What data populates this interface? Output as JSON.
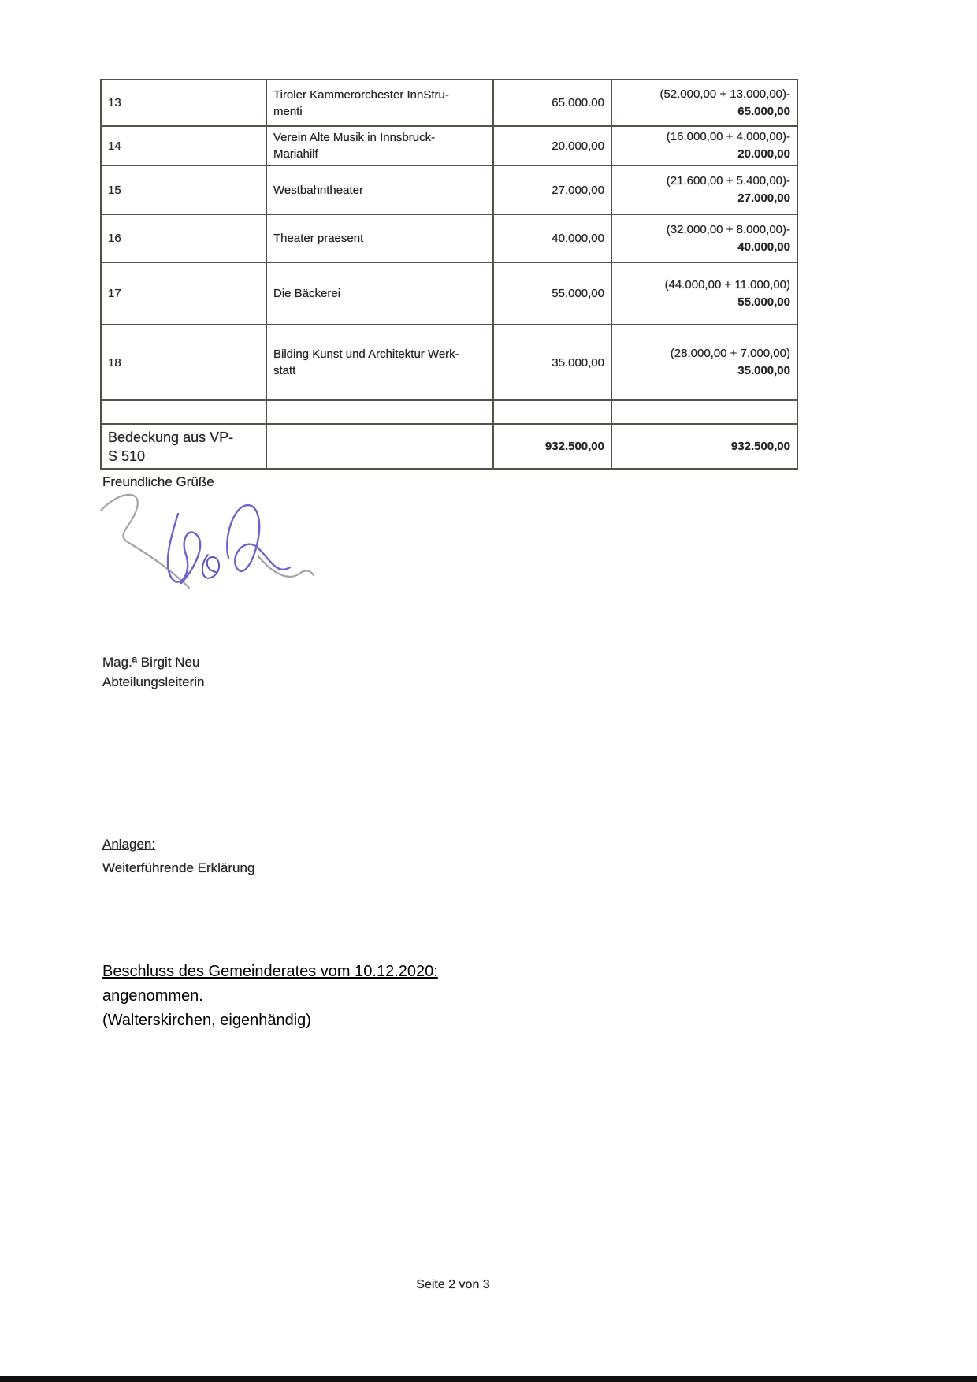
{
  "table": {
    "rows": [
      {
        "num": "13",
        "name_lines": [
          "Tiroler Kammerorchester InnStru-",
          "menti"
        ],
        "amount": "65.000.00",
        "calc": "(52.000,00 + 13.000,00)-",
        "calc_total": "65.000,00"
      },
      {
        "num": "14",
        "name_lines": [
          "Verein Alte Musik in Innsbruck-",
          "Mariahilf"
        ],
        "amount": "20.000,00",
        "calc": "(16.000,00 + 4.000,00)-",
        "calc_total": "20.000,00"
      },
      {
        "num": "15",
        "name_lines": [
          "Westbahntheater"
        ],
        "amount": "27.000,00",
        "calc": "(21.600,00 + 5.400,00)-",
        "calc_total": "27.000,00"
      },
      {
        "num": "16",
        "name_lines": [
          "Theater praesent"
        ],
        "amount": "40.000,00",
        "calc": "(32.000,00 + 8.000,00)-",
        "calc_total": "40.000,00"
      },
      {
        "num": "17",
        "name_lines": [
          "Die Bäckerei"
        ],
        "amount": "55.000,00",
        "calc": "(44.000,00 + 11.000,00)",
        "calc_total": "55.000,00"
      },
      {
        "num": "18",
        "name_lines": [
          "Bilding Kunst und Architektur Werk-",
          "statt"
        ],
        "amount": "35.000,00",
        "calc": "(28.000,00 + 7.000,00)",
        "calc_total": "35.000,00"
      }
    ],
    "summary_row": {
      "label_lines": [
        "Bedeckung aus VP-",
        "S 510"
      ],
      "amount": "932.500,00",
      "calc_total": "932.500,00"
    }
  },
  "closing": {
    "salutation": "Freundliche Grüße",
    "signer_name": "Mag.ª Birgit Neu",
    "signer_role": "Abteilungsleiterin"
  },
  "attachments": {
    "heading": "Anlagen:",
    "item": "Weiterführende Erklärung"
  },
  "resolution": {
    "heading": "Beschluss des Gemeinderates vom 10.12.2020:",
    "decision": "angenommen.",
    "signature_note": "(Walterskirchen, eigenhändig)"
  },
  "footer": {
    "page_label": "Seite 2 von 3"
  },
  "colors": {
    "signature_blue": "#6f64c9",
    "signature_gray": "#a3a3ab",
    "table_border": "#555049",
    "scan_text": "#262626"
  }
}
